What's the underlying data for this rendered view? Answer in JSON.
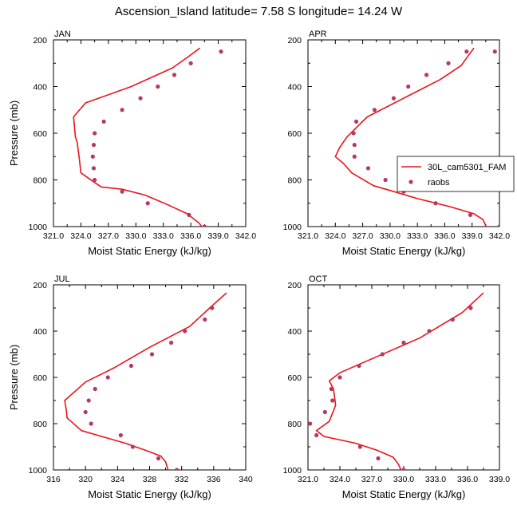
{
  "title": "Ascension_Island  latitude= 7.58 S longitude= 14.24 W",
  "colors": {
    "model": "#e8141c",
    "obs": "#b23a64"
  },
  "legend": {
    "model_label": "30L_cam5301_FAM",
    "obs_label": "raobs"
  },
  "chart_data": [
    {
      "type": "line",
      "panel_label": "JAN",
      "xlabel": "Moist Static Energy (kJ/kg)",
      "ylabel": "Pressure (mb)",
      "xlim": [
        321.0,
        342.0
      ],
      "ylim": [
        1000,
        200
      ],
      "xticks": [
        "321.0",
        "324.0",
        "327.0",
        "330.0",
        "333.0",
        "336.0",
        "339.0",
        "342.0"
      ],
      "yticks": [
        "200",
        "400",
        "600",
        "800",
        "1000"
      ],
      "series": [
        {
          "name": "30L_cam5301_FAM",
          "kind": "line",
          "x": [
            337.4,
            336.9,
            335.6,
            333.4,
            331.0,
            328.5,
            326.2,
            324.0,
            323.8,
            323.6,
            323.4,
            323.2,
            324.5,
            329.5,
            334.0,
            335.8,
            337.0
          ],
          "y": [
            1010,
            985,
            945,
            905,
            865,
            840,
            830,
            770,
            700,
            640,
            615,
            530,
            470,
            400,
            320,
            270,
            235
          ]
        },
        {
          "name": "raobs",
          "kind": "scatter",
          "x": [
            337.5,
            335.8,
            331.3,
            328.5,
            325.5,
            325.4,
            325.3,
            325.4,
            325.5,
            326.5,
            328.5,
            330.5,
            332.4,
            334.2,
            336.0,
            339.3
          ],
          "y": [
            1000,
            950,
            900,
            850,
            800,
            750,
            700,
            650,
            600,
            550,
            500,
            450,
            400,
            350,
            300,
            250
          ]
        }
      ]
    },
    {
      "type": "line",
      "panel_label": "APR",
      "xlabel": "Moist Static Energy (kJ/kg)",
      "ylabel": "",
      "xlim": [
        321.0,
        342.0
      ],
      "ylim": [
        1000,
        200
      ],
      "xticks": [
        "321.0",
        "324.0",
        "327.0",
        "330.0",
        "333.0",
        "336.0",
        "339.0",
        "342.0"
      ],
      "yticks": [
        "200",
        "400",
        "600",
        "800",
        "1000"
      ],
      "series": [
        {
          "name": "30L_cam5301_FAM",
          "kind": "line",
          "x": [
            340.6,
            340.2,
            339.2,
            336.6,
            333.0,
            330.0,
            328.2,
            325.8,
            324.9,
            324.0,
            324.5,
            325.3,
            327.5,
            331.5,
            335.5,
            337.8,
            339.2
          ],
          "y": [
            1005,
            970,
            945,
            915,
            880,
            845,
            825,
            770,
            730,
            700,
            660,
            615,
            530,
            450,
            370,
            310,
            235
          ]
        },
        {
          "name": "raobs",
          "kind": "scatter",
          "x": [
            342.0,
            338.8,
            335.0,
            331.5,
            329.5,
            327.6,
            326.1,
            326.1,
            326.0,
            326.3,
            328.3,
            330.4,
            332.0,
            334.0,
            336.4,
            338.4,
            341.5
          ],
          "y": [
            1000,
            950,
            900,
            850,
            800,
            750,
            700,
            650,
            600,
            550,
            500,
            450,
            400,
            350,
            300,
            250,
            250
          ]
        }
      ]
    },
    {
      "type": "line",
      "panel_label": "JUL",
      "xlabel": "Moist Static Energy (kJ/kg)",
      "ylabel": "Pressure (mb)",
      "xlim": [
        316,
        340
      ],
      "ylim": [
        1000,
        200
      ],
      "xticks": [
        "316",
        "320",
        "324",
        "328",
        "332",
        "336",
        "340"
      ],
      "yticks": [
        "200",
        "400",
        "600",
        "800",
        "1000"
      ],
      "series": [
        {
          "name": "30L_cam5301_FAM",
          "kind": "line",
          "x": [
            330.4,
            330.0,
            329.4,
            327.5,
            325.0,
            322.0,
            319.5,
            317.7,
            317.6,
            317.4,
            320.0,
            323.5,
            328.0,
            333.0,
            335.5,
            337.6
          ],
          "y": [
            1010,
            965,
            940,
            915,
            885,
            855,
            830,
            775,
            740,
            700,
            620,
            560,
            470,
            380,
            300,
            235
          ]
        },
        {
          "name": "raobs",
          "kind": "scatter",
          "x": [
            331.4,
            329.1,
            325.9,
            324.4,
            320.7,
            320.0,
            320.4,
            321.2,
            322.8,
            325.7,
            328.3,
            330.7,
            332.4,
            334.9,
            335.8
          ],
          "y": [
            1000,
            950,
            900,
            850,
            800,
            750,
            700,
            650,
            600,
            550,
            500,
            450,
            400,
            350,
            300
          ]
        }
      ]
    },
    {
      "type": "line",
      "panel_label": "OCT",
      "xlabel": "Moist Static Energy (kJ/kg)",
      "ylabel": "",
      "xlim": [
        321.0,
        339.0
      ],
      "ylim": [
        1000,
        200
      ],
      "xticks": [
        "321.0",
        "324.0",
        "327.0",
        "330.0",
        "333.0",
        "336.0",
        "339.0"
      ],
      "yticks": [
        "200",
        "400",
        "600",
        "800",
        "1000"
      ],
      "series": [
        {
          "name": "30L_cam5301_FAM",
          "kind": "line",
          "x": [
            329.8,
            329.5,
            329.0,
            327.5,
            325.5,
            322.5,
            321.8,
            323.0,
            323.6,
            323.4,
            323.0,
            324.0,
            326.5,
            331.5,
            335.5,
            337.5
          ],
          "y": [
            1005,
            975,
            945,
            915,
            885,
            855,
            830,
            790,
            720,
            650,
            615,
            580,
            530,
            430,
            320,
            235
          ]
        },
        {
          "name": "raobs",
          "kind": "scatter",
          "x": [
            330.0,
            327.6,
            325.9,
            321.8,
            321.2,
            322.6,
            323.3,
            323.2,
            324.0,
            325.8,
            328.0,
            330.0,
            332.4,
            334.6,
            336.3
          ],
          "y": [
            1000,
            950,
            900,
            850,
            800,
            750,
            700,
            650,
            600,
            550,
            500,
            450,
            400,
            350,
            300
          ]
        }
      ]
    }
  ]
}
